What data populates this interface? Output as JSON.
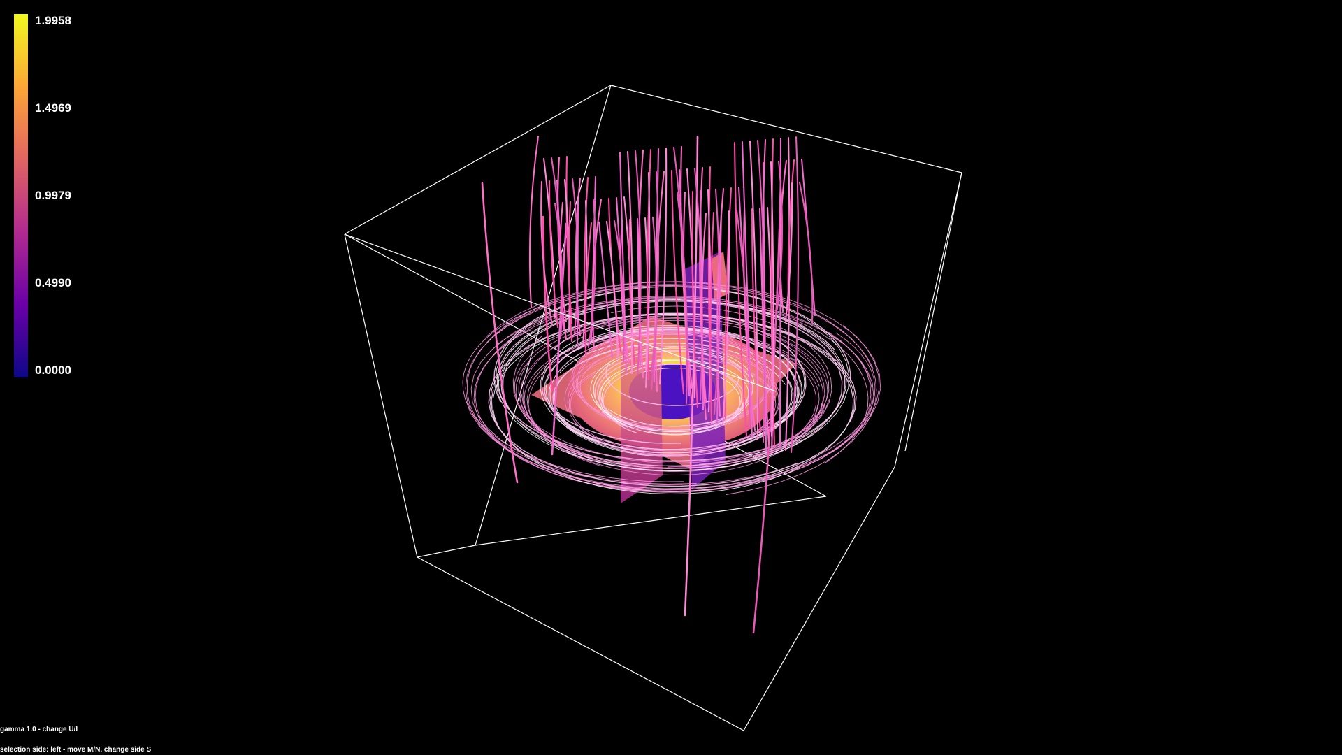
{
  "colorbar": {
    "colors": [
      "#f0f921",
      "#fca636",
      "#e16462",
      "#b12a90",
      "#6a00a8",
      "#0d0887"
    ],
    "ticks": [
      "1.9958",
      "1.4969",
      "0.9979",
      "0.4990",
      "0.0000"
    ]
  },
  "status": {
    "gamma": "gamma 1.0 - change U/I",
    "selection": "selection side: left - move M/N, change side S"
  },
  "scene": {
    "background": "#000000",
    "box_color": "#ffffff",
    "streamline_colors": [
      "#ff6fc8",
      "#ff4fa8",
      "#f06ad0",
      "#ff88d8",
      "#e85ab8"
    ],
    "ring_colors": [
      "#ffc0f0",
      "#ff9be0",
      "#ffffff",
      "#f48ad8"
    ],
    "slice_colors": [
      "#f4d03f",
      "#fb9a66",
      "#e86b7a",
      "#4a12c0",
      "#7a22b8"
    ]
  }
}
